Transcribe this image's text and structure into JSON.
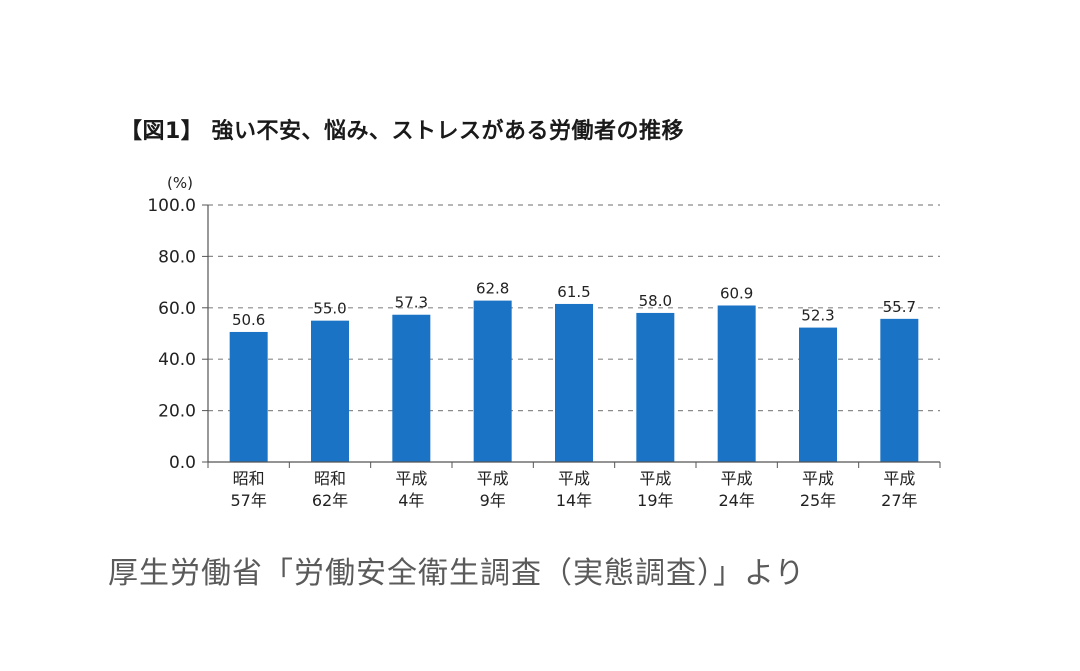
{
  "chart_data": {
    "type": "bar",
    "title": "【図1】 強い不安、悩み、ストレスがある労働者の推移",
    "ylabel": "(%)",
    "xlabel": "",
    "categories": [
      [
        "昭和",
        "57年"
      ],
      [
        "昭和",
        "62年"
      ],
      [
        "平成",
        "4年"
      ],
      [
        "平成",
        "9年"
      ],
      [
        "平成",
        "14年"
      ],
      [
        "平成",
        "19年"
      ],
      [
        "平成",
        "24年"
      ],
      [
        "平成",
        "25年"
      ],
      [
        "平成",
        "27年"
      ]
    ],
    "values": [
      50.6,
      55.0,
      57.3,
      62.8,
      61.5,
      58.0,
      60.9,
      52.3,
      55.7
    ],
    "value_labels": [
      "50.6",
      "55.0",
      "57.3",
      "62.8",
      "61.5",
      "58.0",
      "60.9",
      "52.3",
      "55.7"
    ],
    "ylim": [
      0,
      100
    ],
    "yticks": [
      0,
      20,
      40,
      60,
      80,
      100
    ],
    "ytick_labels": [
      "0.0",
      "20.0",
      "40.0",
      "60.0",
      "80.0",
      "100.0"
    ],
    "grid": "dashed-horizontal",
    "bar_color": "#1a73c4"
  },
  "source_note": "厚生労働省「労働安全衛生調査（実態調査）」より"
}
